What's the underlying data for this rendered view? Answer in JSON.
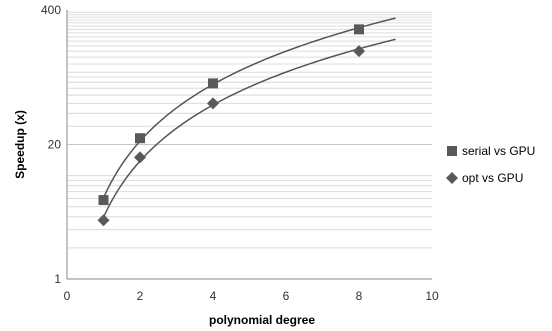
{
  "chart_data": {
    "type": "scatter",
    "title": "",
    "xlabel": "polynomial degree",
    "ylabel": "Speedup (x)",
    "xlim": [
      0,
      10
    ],
    "ylim": [
      1,
      400
    ],
    "yscale": "log",
    "x_ticks": [
      "0",
      "2",
      "4",
      "6",
      "8",
      "10"
    ],
    "y_ticks": [
      "1",
      "20",
      "400"
    ],
    "grid": true,
    "legend_position": "right",
    "series": [
      {
        "name": "serial vs GPU",
        "marker": "square",
        "color": "#595959",
        "x": [
          1,
          2,
          4,
          8
        ],
        "y": [
          5.8,
          23,
          78,
          260
        ]
      },
      {
        "name": "opt vs GPU",
        "marker": "diamond",
        "color": "#595959",
        "x": [
          1,
          2,
          4,
          8
        ],
        "y": [
          3.7,
          15,
          50,
          160
        ]
      }
    ]
  }
}
